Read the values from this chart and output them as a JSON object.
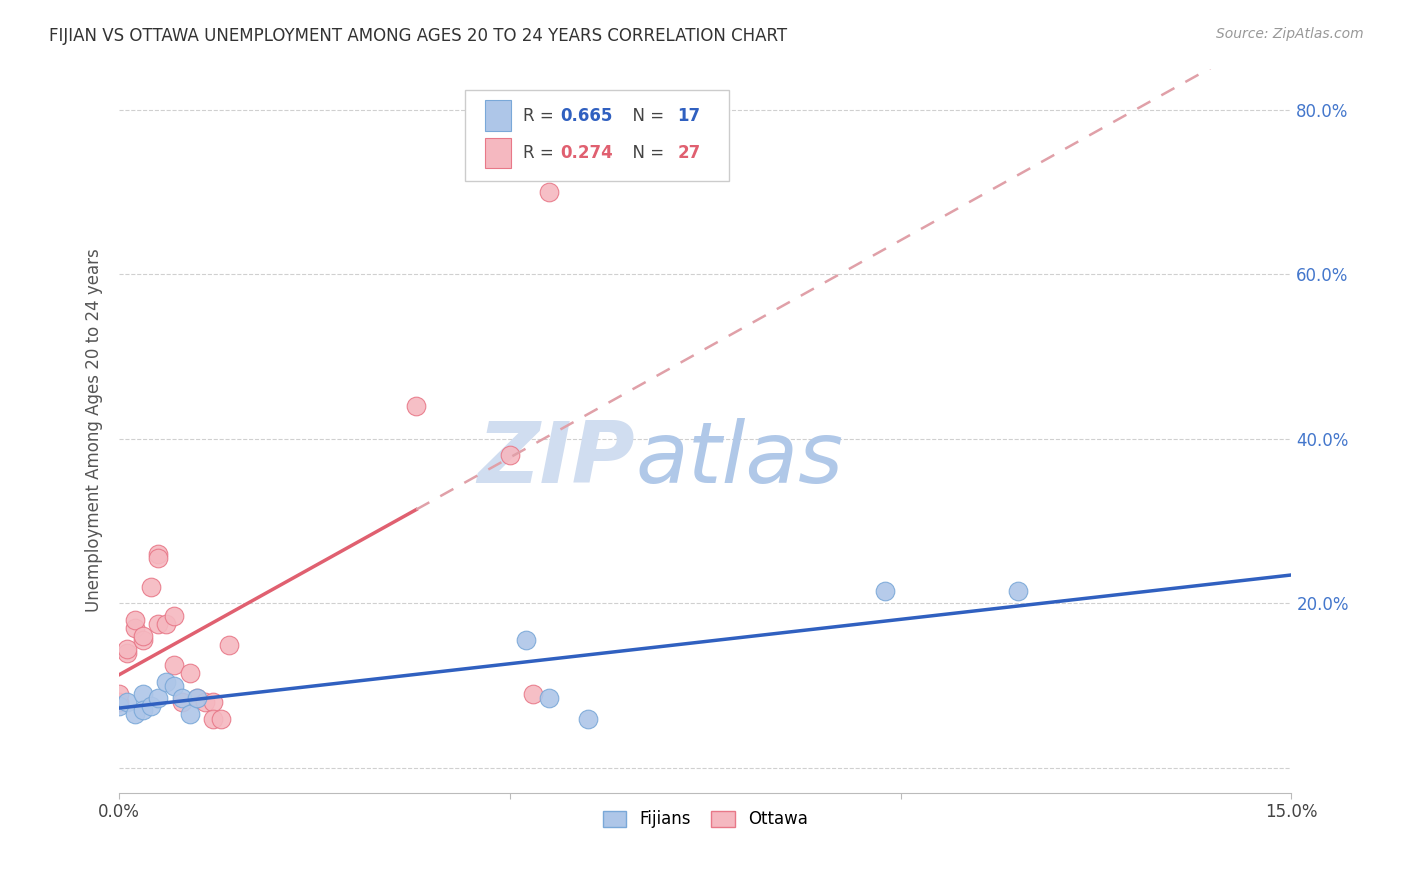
{
  "title": "FIJIAN VS OTTAWA UNEMPLOYMENT AMONG AGES 20 TO 24 YEARS CORRELATION CHART",
  "source": "Source: ZipAtlas.com",
  "ylabel": "Unemployment Among Ages 20 to 24 years",
  "xlim": [
    0,
    0.15
  ],
  "ylim": [
    -0.03,
    0.85
  ],
  "fijians_x": [
    0.0,
    0.001,
    0.002,
    0.003,
    0.003,
    0.004,
    0.005,
    0.006,
    0.007,
    0.008,
    0.009,
    0.01,
    0.052,
    0.055,
    0.06,
    0.098,
    0.115
  ],
  "fijians_y": [
    0.075,
    0.08,
    0.065,
    0.09,
    0.07,
    0.075,
    0.085,
    0.105,
    0.1,
    0.085,
    0.065,
    0.085,
    0.155,
    0.085,
    0.06,
    0.215,
    0.215
  ],
  "ottawa_x": [
    0.0,
    0.0,
    0.001,
    0.001,
    0.002,
    0.002,
    0.003,
    0.003,
    0.004,
    0.005,
    0.005,
    0.005,
    0.006,
    0.007,
    0.007,
    0.008,
    0.009,
    0.01,
    0.011,
    0.012,
    0.012,
    0.013,
    0.014,
    0.038,
    0.05,
    0.053,
    0.055
  ],
  "ottawa_y": [
    0.08,
    0.09,
    0.14,
    0.145,
    0.17,
    0.18,
    0.155,
    0.16,
    0.22,
    0.26,
    0.255,
    0.175,
    0.175,
    0.125,
    0.185,
    0.08,
    0.115,
    0.085,
    0.08,
    0.08,
    0.06,
    0.06,
    0.15,
    0.44,
    0.38,
    0.09,
    0.7
  ],
  "fijians_R": 0.665,
  "fijians_N": 17,
  "ottawa_R": 0.274,
  "ottawa_N": 27,
  "fijians_color": "#aec6e8",
  "fijians_edge_color": "#7aa8d8",
  "fijians_line_color": "#3060c0",
  "ottawa_color": "#f5b8c0",
  "ottawa_edge_color": "#e87888",
  "ottawa_line_color": "#e06070",
  "ottawa_dash_color": "#e0a0a8",
  "watermark_zip_color": "#d0ddf0",
  "watermark_atlas_color": "#b0c8e8",
  "background_color": "#ffffff",
  "grid_color": "#d0d0d0",
  "legend_border_color": "#cccccc",
  "right_axis_color": "#4477cc",
  "title_color": "#333333",
  "source_color": "#999999",
  "ylabel_color": "#555555"
}
